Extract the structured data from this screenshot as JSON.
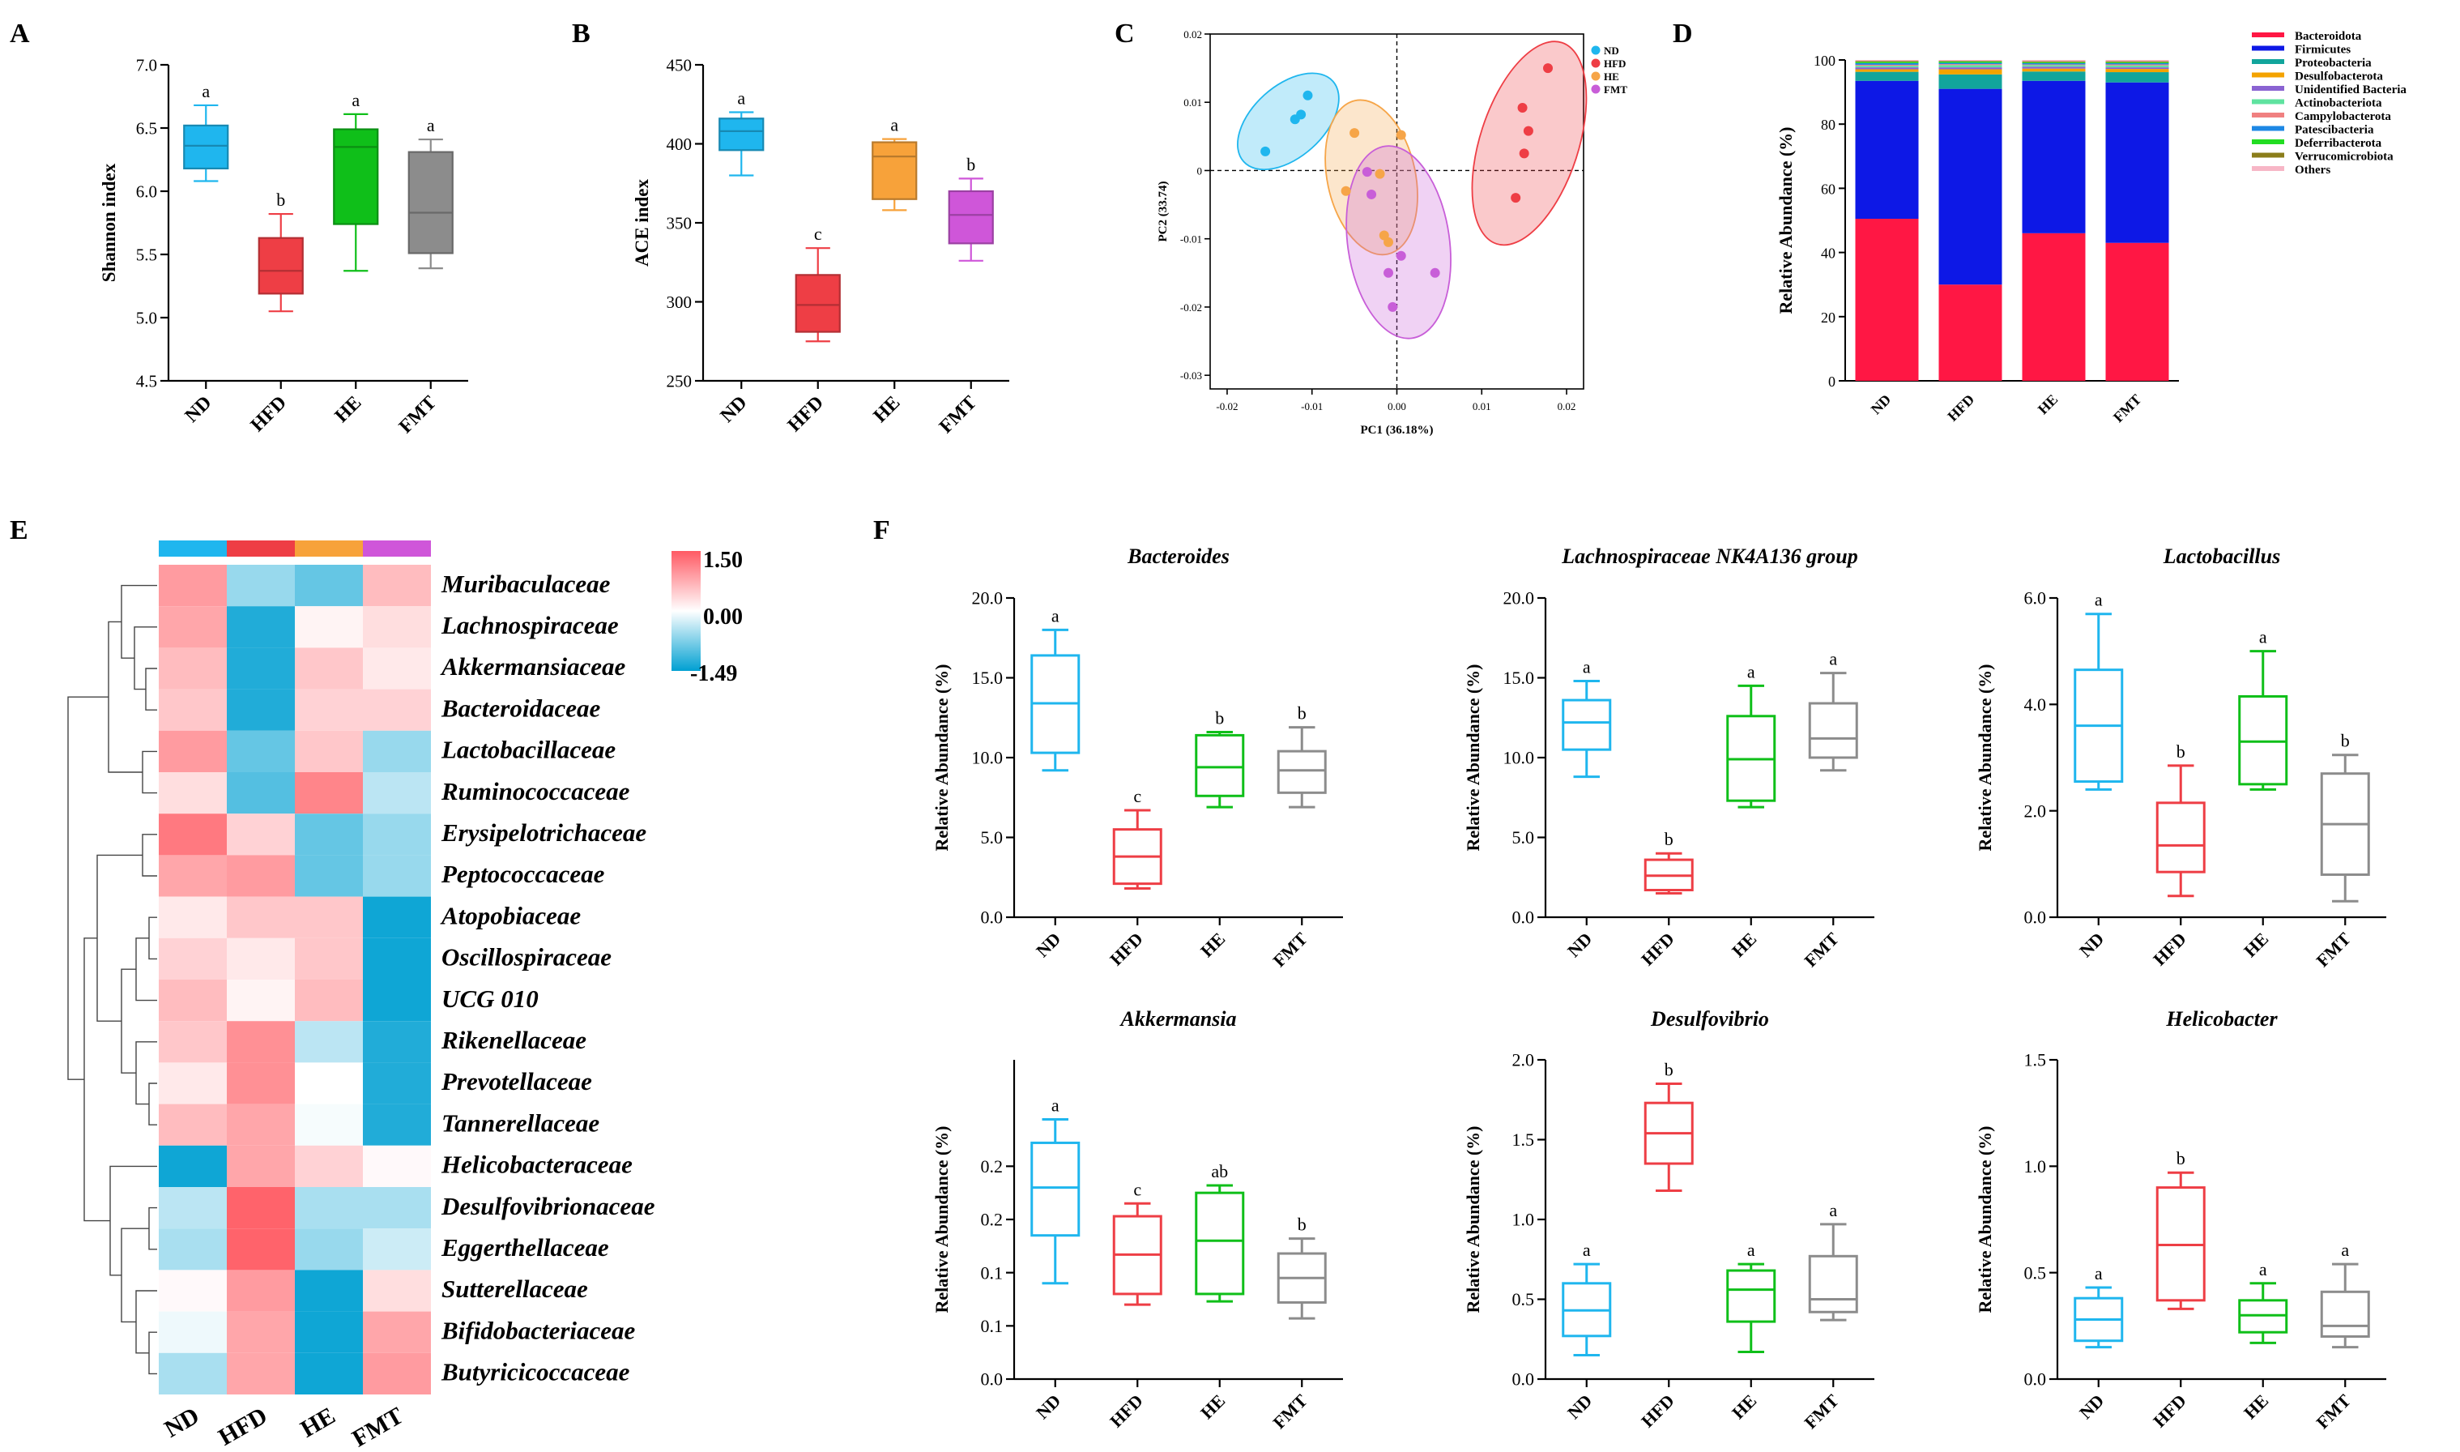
{
  "figure": {
    "groups": [
      "ND",
      "HFD",
      "HE",
      "FMT"
    ]
  },
  "colors": {
    "ND": "#1fb6ee",
    "HFD": "#ee3e45",
    "HE": "#0fbf19",
    "FMT": "#8c8c8c",
    "HE_B": "#f7a23a",
    "FMT_B": "#cf56d9",
    "HE_C": "#f6a548",
    "FMT_C": "#c85ed8"
  },
  "chart_data": [
    {
      "panel": "A",
      "type": "box",
      "ylabel": "Shannon index",
      "ylim": [
        4.5,
        7.0
      ],
      "yticks": [
        "4.5",
        "5.0",
        "5.5",
        "6.0",
        "6.5",
        "7.0"
      ],
      "ytick_values": [
        4.5,
        5.0,
        5.5,
        6.0,
        6.5,
        7.0
      ],
      "categories": [
        "ND",
        "HFD",
        "HE",
        "FMT"
      ],
      "style": "filled",
      "box_colors": [
        "#1fb6ee",
        "#ee3e45",
        "#0fbf19",
        "#8c8c8c"
      ],
      "boxes": [
        {
          "min": 6.08,
          "q1": 6.18,
          "median": 6.36,
          "q3": 6.52,
          "max": 6.68
        },
        {
          "min": 5.05,
          "q1": 5.19,
          "median": 5.37,
          "q3": 5.63,
          "max": 5.82
        },
        {
          "min": 5.37,
          "q1": 5.74,
          "median": 6.35,
          "q3": 6.49,
          "max": 6.61
        },
        {
          "min": 5.39,
          "q1": 5.51,
          "median": 5.83,
          "q3": 6.31,
          "max": 6.41
        }
      ],
      "letters": [
        "a",
        "b",
        "a",
        "a"
      ]
    },
    {
      "panel": "B",
      "type": "box",
      "ylabel": "ACE index",
      "ylim": [
        250,
        450
      ],
      "yticks": [
        "250",
        "300",
        "350",
        "400",
        "450"
      ],
      "ytick_values": [
        250,
        300,
        350,
        400,
        450
      ],
      "categories": [
        "ND",
        "HFD",
        "HE",
        "FMT"
      ],
      "style": "filled",
      "box_colors": [
        "#1fb6ee",
        "#ee3e45",
        "#f7a23a",
        "#cf56d9"
      ],
      "boxes": [
        {
          "min": 380,
          "q1": 396,
          "median": 408,
          "q3": 416,
          "max": 420
        },
        {
          "min": 275,
          "q1": 281,
          "median": 298,
          "q3": 317,
          "max": 334
        },
        {
          "min": 358,
          "q1": 365,
          "median": 392,
          "q3": 401,
          "max": 403
        },
        {
          "min": 326,
          "q1": 337,
          "median": 355,
          "q3": 370,
          "max": 378
        }
      ],
      "letters": [
        "a",
        "c",
        "a",
        "b"
      ]
    },
    {
      "panel": "C",
      "type": "scatter",
      "xlabel": "PC1 (36.18%)",
      "ylabel": "PC2 (33.74)",
      "xlim": [
        -0.022,
        0.022
      ],
      "ylim": [
        -0.032,
        0.02
      ],
      "xticks": [
        "-0.02",
        "-0.01",
        "0.00",
        "0.01",
        "0.02"
      ],
      "xtick_values": [
        -0.02,
        -0.01,
        0,
        0.01,
        0.02
      ],
      "yticks": [
        "0.02",
        "0.01",
        "0",
        "-0.01",
        "-0.02",
        "-0.03"
      ],
      "ytick_values": [
        0.02,
        0.01,
        0,
        -0.01,
        -0.02,
        -0.03
      ],
      "legend": [
        "ND",
        "HFD",
        "HE",
        "FMT"
      ],
      "series": [
        {
          "name": "ND",
          "color": "#1fb6ee",
          "x": [
            -0.0155,
            -0.012,
            -0.0113,
            -0.0105
          ],
          "y": [
            0.0028,
            0.0075,
            0.0082,
            0.011
          ]
        },
        {
          "name": "HFD",
          "color": "#ee3e45",
          "x": [
            0.014,
            0.015,
            0.0155,
            0.0148,
            0.0178
          ],
          "y": [
            -0.004,
            0.0025,
            0.0058,
            0.0092,
            0.015
          ]
        },
        {
          "name": "HE",
          "color": "#f6a548",
          "x": [
            -0.006,
            -0.005,
            -0.002,
            -0.0015,
            -0.001,
            0.0005
          ],
          "y": [
            -0.003,
            0.0055,
            -0.0005,
            -0.0095,
            -0.0105,
            0.0052
          ]
        },
        {
          "name": "FMT",
          "color": "#c85ed8",
          "x": [
            -0.0035,
            -0.003,
            -0.001,
            -0.0005,
            0.0005,
            0.0045
          ],
          "y": [
            -0.0002,
            -0.0035,
            -0.015,
            -0.02,
            -0.0125,
            -0.015
          ]
        }
      ],
      "ellipses": [
        {
          "name": "ND",
          "cx": -0.0128,
          "cy": 0.0072,
          "rx": 0.0042,
          "ry": 0.0088,
          "angle": 48
        },
        {
          "name": "HE",
          "cx": -0.003,
          "cy": -0.001,
          "rx": 0.0052,
          "ry": 0.0115,
          "angle": -12
        },
        {
          "name": "FMT",
          "cx": 0.0002,
          "cy": -0.0105,
          "rx": 0.006,
          "ry": 0.0142,
          "angle": -8
        },
        {
          "name": "HFD",
          "cx": 0.0156,
          "cy": 0.004,
          "rx": 0.0058,
          "ry": 0.0155,
          "angle": 18
        }
      ]
    },
    {
      "panel": "D",
      "type": "stacked-bar",
      "ylabel": "Relative Abundance (%)",
      "ylim": [
        0,
        100
      ],
      "yticks": [
        "0",
        "20",
        "40",
        "60",
        "80",
        "100"
      ],
      "ytick_values": [
        0,
        20,
        40,
        60,
        80,
        100
      ],
      "categories": [
        "ND",
        "HFD",
        "HE",
        "FMT"
      ],
      "series": [
        {
          "name": "Bacteroidota",
          "color": "#ff1744",
          "values": [
            50.5,
            30.0,
            46.0,
            43.0
          ]
        },
        {
          "name": "Firmicutes",
          "color": "#0d18e6",
          "values": [
            43.0,
            61.0,
            47.5,
            50.0
          ]
        },
        {
          "name": "Proteobacteria",
          "color": "#12a59c",
          "values": [
            2.8,
            4.5,
            2.9,
            3.2
          ]
        },
        {
          "name": "Desulfobacterota",
          "color": "#f4a300",
          "values": [
            0.8,
            1.6,
            0.9,
            1.0
          ]
        },
        {
          "name": "Unidentified Bacteria",
          "color": "#8a63d2",
          "values": [
            0.6,
            0.6,
            0.6,
            0.5
          ]
        },
        {
          "name": "Actinobacteriota",
          "color": "#5fe3a0",
          "values": [
            0.5,
            0.7,
            0.5,
            0.6
          ]
        },
        {
          "name": "Campylobacterota",
          "color": "#f08080",
          "values": [
            0.3,
            0.3,
            0.2,
            0.3
          ]
        },
        {
          "name": "Patescibacteria",
          "color": "#1e88e5",
          "values": [
            0.5,
            0.4,
            0.4,
            0.4
          ]
        },
        {
          "name": "Deferribacterota",
          "color": "#22dd22",
          "values": [
            0.4,
            0.4,
            0.3,
            0.3
          ]
        },
        {
          "name": "Verrucomicrobiota",
          "color": "#8b7d1a",
          "values": [
            0.3,
            0.2,
            0.3,
            0.3
          ]
        },
        {
          "name": "Others",
          "color": "#f7b6c6",
          "values": [
            0.3,
            0.3,
            0.4,
            0.4
          ]
        }
      ]
    },
    {
      "panel": "E",
      "type": "heatmap",
      "columns": [
        "ND",
        "HFD",
        "HE",
        "FMT"
      ],
      "column_colors": [
        "#1fb6ee",
        "#ee3e45",
        "#f7a23a",
        "#cf56d9"
      ],
      "colorbar": {
        "max": 1.5,
        "mid": 0,
        "min": -1.49,
        "labels": [
          "1.50",
          "0.00",
          "-1.49"
        ]
      },
      "rows": [
        "Muribaculaceae",
        "Lachnospiraceae",
        "Akkermansiaceae",
        "Bacteroidaceae",
        "Lactobacillaceae",
        "Ruminococcaceae",
        "Erysipelotrichaceae",
        "Peptococcaceae",
        "Atopobiaceae",
        "Oscillospiraceae",
        "UCG 010",
        "Rikenellaceae",
        "Prevotellaceae",
        "Tannerellaceae",
        "Helicobacteraceae",
        "Desulfovibrionaceae",
        "Eggerthellaceae",
        "Sutterellaceae",
        "Bifidobacteriaceae",
        "Butyricicoccaceae"
      ],
      "values": [
        [
          0.9,
          -0.6,
          -0.9,
          0.6
        ],
        [
          0.8,
          -1.3,
          0.1,
          0.3
        ],
        [
          0.6,
          -1.3,
          0.5,
          0.2
        ],
        [
          0.5,
          -1.3,
          0.4,
          0.4
        ],
        [
          0.9,
          -0.9,
          0.5,
          -0.6
        ],
        [
          0.3,
          -1.0,
          1.1,
          -0.4
        ],
        [
          1.2,
          0.4,
          -0.9,
          -0.6
        ],
        [
          0.8,
          0.9,
          -0.9,
          -0.6
        ],
        [
          0.2,
          0.5,
          0.5,
          -1.4
        ],
        [
          0.4,
          0.2,
          0.5,
          -1.4
        ],
        [
          0.6,
          0.1,
          0.6,
          -1.4
        ],
        [
          0.5,
          1.0,
          -0.4,
          -1.3
        ],
        [
          0.2,
          1.0,
          0.0,
          -1.3
        ],
        [
          0.6,
          0.8,
          -0.05,
          -1.3
        ],
        [
          -1.4,
          0.8,
          0.4,
          0.05
        ],
        [
          -0.4,
          1.4,
          -0.5,
          -0.5
        ],
        [
          -0.5,
          1.4,
          -0.6,
          -0.3
        ],
        [
          0.05,
          0.9,
          -1.4,
          0.3
        ],
        [
          -0.1,
          0.8,
          -1.4,
          0.8
        ],
        [
          -0.5,
          0.8,
          -1.4,
          0.9
        ]
      ],
      "dendrogram": {
        "type": "tree",
        "side": "left"
      }
    },
    {
      "panel": "F",
      "type": "box",
      "title": "Bacteroides",
      "ylabel": "Relative Abundance (%)",
      "ylim": [
        0,
        20
      ],
      "yticks": [
        "0.0",
        "5.0",
        "10.0",
        "15.0",
        "20.0"
      ],
      "ytick_values": [
        0,
        5,
        10,
        15,
        20
      ],
      "categories": [
        "ND",
        "HFD",
        "HE",
        "FMT"
      ],
      "style": "outline",
      "box_colors": [
        "#1fb6ee",
        "#ee3e45",
        "#0fbf19",
        "#8c8c8c"
      ],
      "boxes": [
        {
          "min": 9.2,
          "q1": 10.3,
          "median": 13.4,
          "q3": 16.4,
          "max": 18.0
        },
        {
          "min": 1.8,
          "q1": 2.1,
          "median": 3.8,
          "q3": 5.5,
          "max": 6.7
        },
        {
          "min": 6.9,
          "q1": 7.6,
          "median": 9.4,
          "q3": 11.4,
          "max": 11.6
        },
        {
          "min": 6.9,
          "q1": 7.8,
          "median": 9.2,
          "q3": 10.4,
          "max": 11.9
        }
      ],
      "letters": [
        "a",
        "c",
        "b",
        "b"
      ]
    },
    {
      "panel": "F",
      "type": "box",
      "title": "Lachnospiraceae NK4A136 group",
      "ylabel": "Relative Abundance (%)",
      "ylim": [
        0,
        20
      ],
      "yticks": [
        "0.0",
        "5.0",
        "10.0",
        "15.0",
        "20.0"
      ],
      "ytick_values": [
        0,
        5,
        10,
        15,
        20
      ],
      "categories": [
        "ND",
        "HFD",
        "HE",
        "FMT"
      ],
      "style": "outline",
      "box_colors": [
        "#1fb6ee",
        "#ee3e45",
        "#0fbf19",
        "#8c8c8c"
      ],
      "boxes": [
        {
          "min": 8.8,
          "q1": 10.5,
          "median": 12.2,
          "q3": 13.6,
          "max": 14.8
        },
        {
          "min": 1.5,
          "q1": 1.7,
          "median": 2.6,
          "q3": 3.6,
          "max": 4.0
        },
        {
          "min": 6.9,
          "q1": 7.3,
          "median": 9.9,
          "q3": 12.6,
          "max": 14.5
        },
        {
          "min": 9.2,
          "q1": 10.0,
          "median": 11.2,
          "q3": 13.4,
          "max": 15.3
        }
      ],
      "letters": [
        "a",
        "b",
        "a",
        "a"
      ]
    },
    {
      "panel": "F",
      "type": "box",
      "title": "Lactobacillus",
      "ylabel": "Relative Abundance (%)",
      "ylim": [
        0,
        6
      ],
      "yticks": [
        "0.0",
        "2.0",
        "4.0",
        "6.0"
      ],
      "ytick_values": [
        0,
        2,
        4,
        6
      ],
      "categories": [
        "ND",
        "HFD",
        "HE",
        "FMT"
      ],
      "style": "outline",
      "box_colors": [
        "#1fb6ee",
        "#ee3e45",
        "#0fbf19",
        "#8c8c8c"
      ],
      "boxes": [
        {
          "min": 2.4,
          "q1": 2.55,
          "median": 3.6,
          "q3": 4.65,
          "max": 5.7
        },
        {
          "min": 0.4,
          "q1": 0.85,
          "median": 1.35,
          "q3": 2.15,
          "max": 2.85
        },
        {
          "min": 2.4,
          "q1": 2.5,
          "median": 3.3,
          "q3": 4.15,
          "max": 5.0
        },
        {
          "min": 0.3,
          "q1": 0.8,
          "median": 1.75,
          "q3": 2.7,
          "max": 3.05
        }
      ],
      "letters": [
        "a",
        "b",
        "a",
        "b"
      ]
    },
    {
      "panel": "F",
      "type": "box",
      "title": "Akkermansia",
      "ylabel": "Relative Abundance (%)",
      "ylim": [
        0,
        0.3
      ],
      "yticks": [
        "0.0",
        "0.1",
        "0.1",
        "0.2",
        "0.2"
      ],
      "ytick_values": [
        0,
        0.05,
        0.1,
        0.15,
        0.2
      ],
      "categories": [
        "ND",
        "HFD",
        "HE",
        "FMT"
      ],
      "style": "outline",
      "box_colors": [
        "#1fb6ee",
        "#ee3e45",
        "#0fbf19",
        "#8c8c8c"
      ],
      "boxes": [
        {
          "min": 0.09,
          "q1": 0.135,
          "median": 0.18,
          "q3": 0.222,
          "max": 0.244
        },
        {
          "min": 0.07,
          "q1": 0.08,
          "median": 0.117,
          "q3": 0.153,
          "max": 0.165
        },
        {
          "min": 0.073,
          "q1": 0.08,
          "median": 0.13,
          "q3": 0.175,
          "max": 0.182
        },
        {
          "min": 0.057,
          "q1": 0.072,
          "median": 0.095,
          "q3": 0.118,
          "max": 0.132
        }
      ],
      "letters": [
        "a",
        "c",
        "ab",
        "b"
      ]
    },
    {
      "panel": "F",
      "type": "box",
      "title": "Desulfovibrio",
      "ylabel": "Relative Abundance (%)",
      "ylim": [
        0,
        2
      ],
      "yticks": [
        "0.0",
        "0.5",
        "1.0",
        "1.5",
        "2.0"
      ],
      "ytick_values": [
        0,
        0.5,
        1,
        1.5,
        2
      ],
      "categories": [
        "ND",
        "HFD",
        "HE",
        "FMT"
      ],
      "style": "outline",
      "box_colors": [
        "#1fb6ee",
        "#ee3e45",
        "#0fbf19",
        "#8c8c8c"
      ],
      "boxes": [
        {
          "min": 0.15,
          "q1": 0.27,
          "median": 0.43,
          "q3": 0.6,
          "max": 0.72
        },
        {
          "min": 1.18,
          "q1": 1.35,
          "median": 1.54,
          "q3": 1.73,
          "max": 1.85
        },
        {
          "min": 0.17,
          "q1": 0.36,
          "median": 0.56,
          "q3": 0.68,
          "max": 0.72
        },
        {
          "min": 0.37,
          "q1": 0.42,
          "median": 0.5,
          "q3": 0.77,
          "max": 0.97
        }
      ],
      "letters": [
        "a",
        "b",
        "a",
        "a"
      ]
    },
    {
      "panel": "F",
      "type": "box",
      "title": "Helicobacter",
      "ylabel": "Relative Abundance (%)",
      "ylim": [
        0,
        1.5
      ],
      "yticks": [
        "0.0",
        "0.5",
        "1.0",
        "1.5"
      ],
      "ytick_values": [
        0,
        0.5,
        1,
        1.5
      ],
      "categories": [
        "ND",
        "HFD",
        "HE",
        "FMT"
      ],
      "style": "outline",
      "box_colors": [
        "#1fb6ee",
        "#ee3e45",
        "#0fbf19",
        "#8c8c8c"
      ],
      "boxes": [
        {
          "min": 0.15,
          "q1": 0.18,
          "median": 0.28,
          "q3": 0.38,
          "max": 0.43
        },
        {
          "min": 0.33,
          "q1": 0.37,
          "median": 0.63,
          "q3": 0.9,
          "max": 0.97
        },
        {
          "min": 0.17,
          "q1": 0.22,
          "median": 0.3,
          "q3": 0.37,
          "max": 0.45
        },
        {
          "min": 0.15,
          "q1": 0.2,
          "median": 0.25,
          "q3": 0.41,
          "max": 0.54
        }
      ],
      "letters": [
        "a",
        "b",
        "a",
        "a"
      ]
    }
  ]
}
